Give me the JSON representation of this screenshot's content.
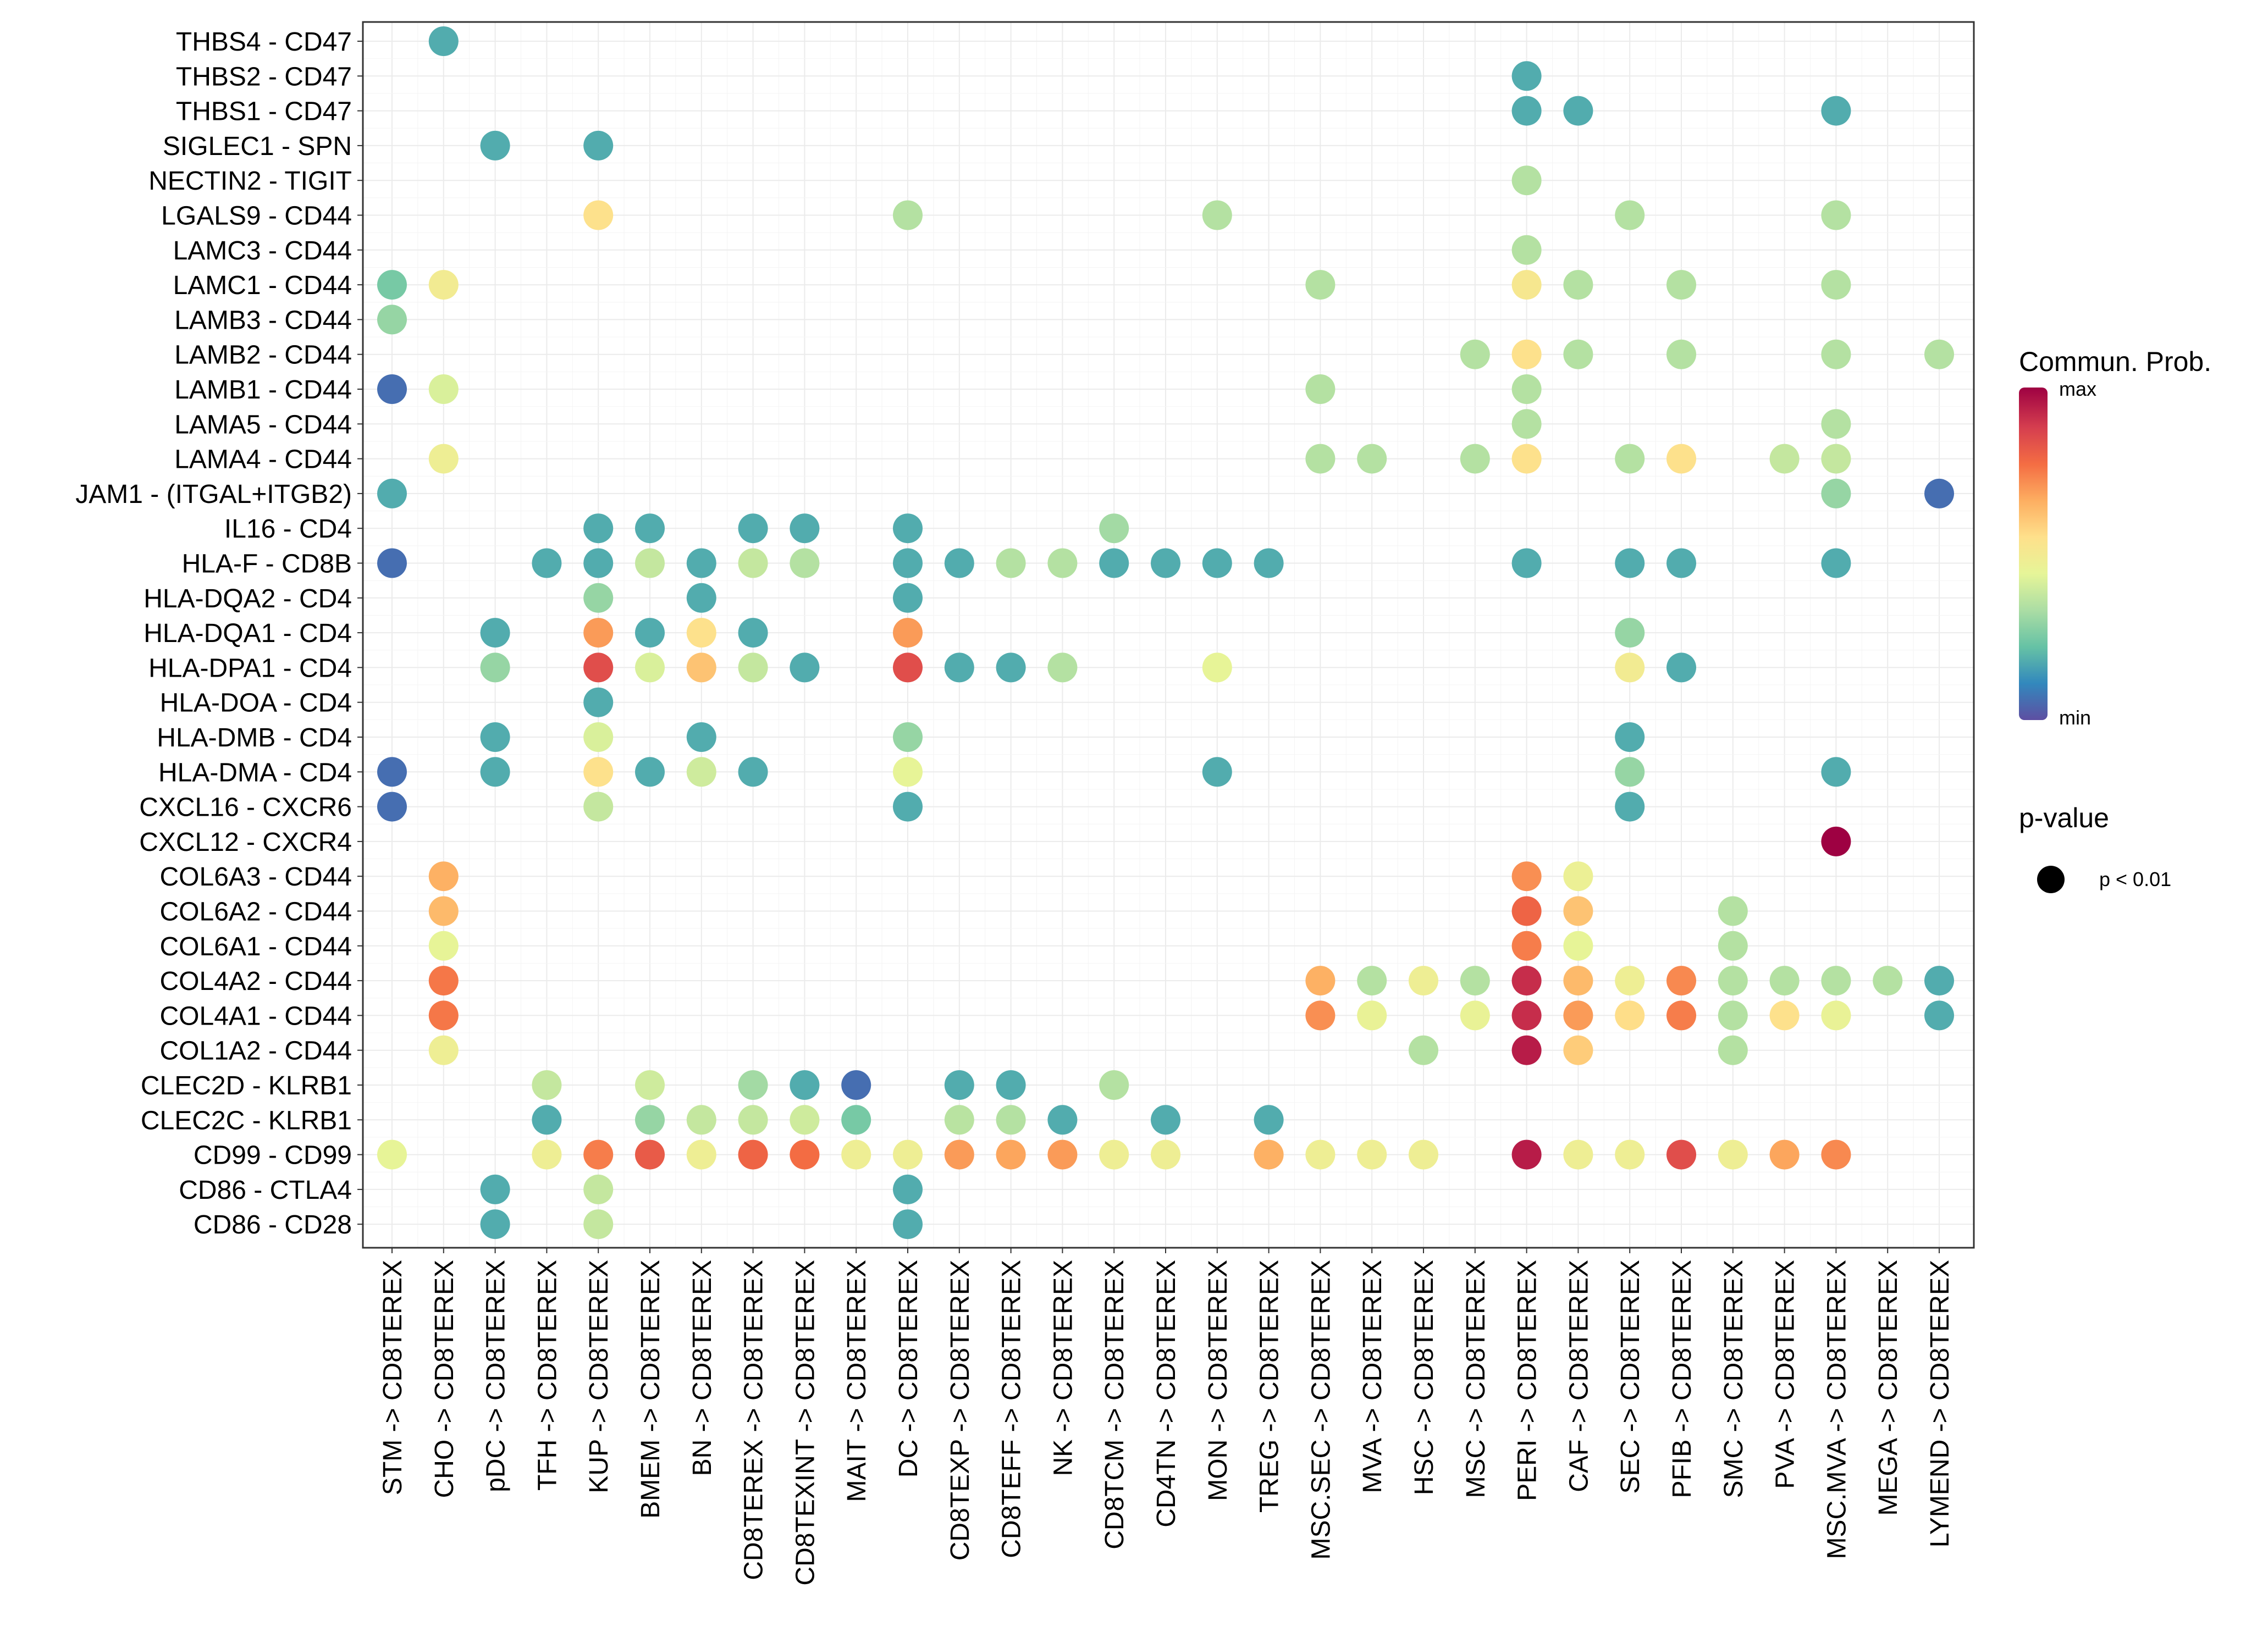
{
  "chart_data": {
    "type": "dot",
    "rows": [
      "THBS4 - CD47",
      "THBS2 - CD47",
      "THBS1 - CD47",
      "SIGLEC1 - SPN",
      "NECTIN2 - TIGIT",
      "LGALS9 - CD44",
      "LAMC3 - CD44",
      "LAMC1 - CD44",
      "LAMB3 - CD44",
      "LAMB2 - CD44",
      "LAMB1 - CD44",
      "LAMA5 - CD44",
      "LAMA4 - CD44",
      "JAM1 - (ITGAL+ITGB2)",
      "IL16 - CD4",
      "HLA-F - CD8B",
      "HLA-DQA2 - CD4",
      "HLA-DQA1 - CD4",
      "HLA-DPA1 - CD4",
      "HLA-DOA - CD4",
      "HLA-DMB - CD4",
      "HLA-DMA - CD4",
      "CXCL16 - CXCR6",
      "CXCL12 - CXCR4",
      "COL6A3 - CD44",
      "COL6A2 - CD44",
      "COL6A1 - CD44",
      "COL4A2 - CD44",
      "COL4A1 - CD44",
      "COL1A2 - CD44",
      "CLEC2D - KLRB1",
      "CLEC2C - KLRB1",
      "CD99 - CD99",
      "CD86 - CTLA4",
      "CD86 - CD28"
    ],
    "columns": [
      "STM -> CD8TEREX",
      "CHO -> CD8TEREX",
      "pDC -> CD8TEREX",
      "TFH -> CD8TEREX",
      "KUP -> CD8TEREX",
      "BMEM -> CD8TEREX",
      "BN -> CD8TEREX",
      "CD8TEREX -> CD8TEREX",
      "CD8TEXINT -> CD8TEREX",
      "MAIT -> CD8TEREX",
      "DC -> CD8TEREX",
      "CD8TEXP -> CD8TEREX",
      "CD8TEFF -> CD8TEREX",
      "NK -> CD8TEREX",
      "CD8TCM -> CD8TEREX",
      "CD4TN -> CD8TEREX",
      "MON -> CD8TEREX",
      "TREG -> CD8TEREX",
      "MSC.SEC -> CD8TEREX",
      "MVA -> CD8TEREX",
      "HSC -> CD8TEREX",
      "MSC -> CD8TEREX",
      "PERI -> CD8TEREX",
      "CAF -> CD8TEREX",
      "SEC -> CD8TEREX",
      "PFIB -> CD8TEREX",
      "SMC -> CD8TEREX",
      "PVA -> CD8TEREX",
      "MSC.MVA -> CD8TEREX",
      "MEGA -> CD8TEREX",
      "LYMEND -> CD8TEREX"
    ],
    "value_scale": "relative communication probability, 0 = min, 1 = max",
    "points": [
      [
        0,
        1,
        0.18
      ],
      [
        1,
        22,
        0.18
      ],
      [
        2,
        22,
        0.18
      ],
      [
        2,
        23,
        0.18
      ],
      [
        2,
        28,
        0.18
      ],
      [
        3,
        2,
        0.18
      ],
      [
        3,
        4,
        0.18
      ],
      [
        4,
        22,
        0.35
      ],
      [
        5,
        4,
        0.55
      ],
      [
        5,
        10,
        0.35
      ],
      [
        5,
        16,
        0.35
      ],
      [
        5,
        24,
        0.35
      ],
      [
        5,
        28,
        0.35
      ],
      [
        6,
        22,
        0.35
      ],
      [
        7,
        0,
        0.25
      ],
      [
        7,
        1,
        0.5
      ],
      [
        7,
        18,
        0.35
      ],
      [
        7,
        22,
        0.52
      ],
      [
        7,
        23,
        0.35
      ],
      [
        7,
        25,
        0.35
      ],
      [
        7,
        28,
        0.35
      ],
      [
        8,
        0,
        0.3
      ],
      [
        9,
        21,
        0.35
      ],
      [
        9,
        22,
        0.55
      ],
      [
        9,
        23,
        0.35
      ],
      [
        9,
        25,
        0.35
      ],
      [
        9,
        28,
        0.35
      ],
      [
        9,
        30,
        0.35
      ],
      [
        10,
        0,
        0.06
      ],
      [
        10,
        1,
        0.42
      ],
      [
        10,
        18,
        0.35
      ],
      [
        10,
        22,
        0.35
      ],
      [
        11,
        22,
        0.35
      ],
      [
        11,
        28,
        0.35
      ],
      [
        12,
        1,
        0.48
      ],
      [
        12,
        18,
        0.35
      ],
      [
        12,
        19,
        0.35
      ],
      [
        12,
        21,
        0.35
      ],
      [
        12,
        22,
        0.55
      ],
      [
        12,
        24,
        0.35
      ],
      [
        12,
        25,
        0.55
      ],
      [
        12,
        27,
        0.38
      ],
      [
        12,
        28,
        0.38
      ],
      [
        13,
        0,
        0.18
      ],
      [
        13,
        28,
        0.3
      ],
      [
        13,
        30,
        0.06
      ],
      [
        14,
        4,
        0.18
      ],
      [
        14,
        5,
        0.18
      ],
      [
        14,
        7,
        0.18
      ],
      [
        14,
        8,
        0.18
      ],
      [
        14,
        10,
        0.18
      ],
      [
        14,
        14,
        0.32
      ],
      [
        15,
        0,
        0.06
      ],
      [
        15,
        3,
        0.18
      ],
      [
        15,
        4,
        0.18
      ],
      [
        15,
        5,
        0.38
      ],
      [
        15,
        6,
        0.18
      ],
      [
        15,
        7,
        0.38
      ],
      [
        15,
        8,
        0.35
      ],
      [
        15,
        10,
        0.18
      ],
      [
        15,
        11,
        0.18
      ],
      [
        15,
        12,
        0.35
      ],
      [
        15,
        13,
        0.35
      ],
      [
        15,
        14,
        0.18
      ],
      [
        15,
        15,
        0.18
      ],
      [
        15,
        16,
        0.18
      ],
      [
        15,
        17,
        0.18
      ],
      [
        15,
        22,
        0.18
      ],
      [
        15,
        24,
        0.18
      ],
      [
        15,
        25,
        0.18
      ],
      [
        15,
        28,
        0.18
      ],
      [
        16,
        4,
        0.3
      ],
      [
        16,
        6,
        0.18
      ],
      [
        16,
        10,
        0.18
      ],
      [
        17,
        2,
        0.18
      ],
      [
        17,
        4,
        0.7
      ],
      [
        17,
        5,
        0.18
      ],
      [
        17,
        6,
        0.55
      ],
      [
        17,
        7,
        0.18
      ],
      [
        17,
        10,
        0.7
      ],
      [
        17,
        24,
        0.3
      ],
      [
        18,
        2,
        0.3
      ],
      [
        18,
        4,
        0.85
      ],
      [
        18,
        5,
        0.42
      ],
      [
        18,
        6,
        0.62
      ],
      [
        18,
        7,
        0.38
      ],
      [
        18,
        8,
        0.18
      ],
      [
        18,
        10,
        0.85
      ],
      [
        18,
        11,
        0.18
      ],
      [
        18,
        12,
        0.18
      ],
      [
        18,
        13,
        0.35
      ],
      [
        18,
        16,
        0.45
      ],
      [
        18,
        24,
        0.5
      ],
      [
        18,
        25,
        0.18
      ],
      [
        19,
        4,
        0.18
      ],
      [
        20,
        2,
        0.18
      ],
      [
        20,
        4,
        0.42
      ],
      [
        20,
        6,
        0.18
      ],
      [
        20,
        10,
        0.3
      ],
      [
        20,
        24,
        0.18
      ],
      [
        21,
        0,
        0.06
      ],
      [
        21,
        2,
        0.18
      ],
      [
        21,
        4,
        0.55
      ],
      [
        21,
        5,
        0.18
      ],
      [
        21,
        6,
        0.4
      ],
      [
        21,
        7,
        0.18
      ],
      [
        21,
        10,
        0.45
      ],
      [
        21,
        16,
        0.18
      ],
      [
        21,
        24,
        0.3
      ],
      [
        21,
        28,
        0.18
      ],
      [
        22,
        0,
        0.06
      ],
      [
        22,
        4,
        0.38
      ],
      [
        22,
        10,
        0.18
      ],
      [
        22,
        24,
        0.18
      ],
      [
        23,
        28,
        1.0
      ],
      [
        24,
        1,
        0.66
      ],
      [
        24,
        22,
        0.72
      ],
      [
        24,
        23,
        0.47
      ],
      [
        25,
        1,
        0.64
      ],
      [
        25,
        22,
        0.8
      ],
      [
        25,
        23,
        0.62
      ],
      [
        25,
        26,
        0.35
      ],
      [
        26,
        1,
        0.45
      ],
      [
        26,
        22,
        0.75
      ],
      [
        26,
        23,
        0.45
      ],
      [
        26,
        26,
        0.35
      ],
      [
        27,
        1,
        0.76
      ],
      [
        27,
        18,
        0.66
      ],
      [
        27,
        19,
        0.35
      ],
      [
        27,
        20,
        0.48
      ],
      [
        27,
        21,
        0.35
      ],
      [
        27,
        22,
        0.92
      ],
      [
        27,
        23,
        0.64
      ],
      [
        27,
        24,
        0.48
      ],
      [
        27,
        25,
        0.73
      ],
      [
        27,
        26,
        0.35
      ],
      [
        27,
        27,
        0.35
      ],
      [
        27,
        28,
        0.35
      ],
      [
        27,
        29,
        0.35
      ],
      [
        27,
        30,
        0.18
      ],
      [
        28,
        1,
        0.76
      ],
      [
        28,
        18,
        0.72
      ],
      [
        28,
        19,
        0.46
      ],
      [
        28,
        21,
        0.46
      ],
      [
        28,
        22,
        0.92
      ],
      [
        28,
        23,
        0.7
      ],
      [
        28,
        24,
        0.56
      ],
      [
        28,
        25,
        0.75
      ],
      [
        28,
        26,
        0.35
      ],
      [
        28,
        27,
        0.55
      ],
      [
        28,
        28,
        0.46
      ],
      [
        28,
        30,
        0.18
      ],
      [
        29,
        1,
        0.48
      ],
      [
        29,
        20,
        0.35
      ],
      [
        29,
        22,
        0.95
      ],
      [
        29,
        23,
        0.6
      ],
      [
        29,
        26,
        0.35
      ],
      [
        30,
        3,
        0.38
      ],
      [
        30,
        5,
        0.4
      ],
      [
        30,
        7,
        0.32
      ],
      [
        30,
        8,
        0.18
      ],
      [
        30,
        9,
        0.06
      ],
      [
        30,
        11,
        0.18
      ],
      [
        30,
        12,
        0.18
      ],
      [
        30,
        14,
        0.35
      ],
      [
        31,
        3,
        0.18
      ],
      [
        31,
        5,
        0.3
      ],
      [
        31,
        6,
        0.38
      ],
      [
        31,
        7,
        0.38
      ],
      [
        31,
        8,
        0.4
      ],
      [
        31,
        9,
        0.25
      ],
      [
        31,
        11,
        0.36
      ],
      [
        31,
        12,
        0.35
      ],
      [
        31,
        13,
        0.18
      ],
      [
        31,
        15,
        0.18
      ],
      [
        31,
        17,
        0.18
      ],
      [
        32,
        0,
        0.45
      ],
      [
        32,
        3,
        0.48
      ],
      [
        32,
        4,
        0.75
      ],
      [
        32,
        5,
        0.82
      ],
      [
        32,
        6,
        0.48
      ],
      [
        32,
        7,
        0.8
      ],
      [
        32,
        8,
        0.78
      ],
      [
        32,
        9,
        0.48
      ],
      [
        32,
        10,
        0.48
      ],
      [
        32,
        11,
        0.7
      ],
      [
        32,
        12,
        0.68
      ],
      [
        32,
        13,
        0.7
      ],
      [
        32,
        14,
        0.48
      ],
      [
        32,
        15,
        0.48
      ],
      [
        32,
        17,
        0.66
      ],
      [
        32,
        18,
        0.48
      ],
      [
        32,
        19,
        0.48
      ],
      [
        32,
        20,
        0.48
      ],
      [
        32,
        22,
        0.95
      ],
      [
        32,
        23,
        0.48
      ],
      [
        32,
        24,
        0.48
      ],
      [
        32,
        25,
        0.85
      ],
      [
        32,
        26,
        0.48
      ],
      [
        32,
        27,
        0.68
      ],
      [
        32,
        28,
        0.73
      ],
      [
        33,
        2,
        0.18
      ],
      [
        33,
        4,
        0.38
      ],
      [
        33,
        10,
        0.18
      ],
      [
        34,
        2,
        0.18
      ],
      [
        34,
        4,
        0.38
      ],
      [
        34,
        10,
        0.18
      ]
    ],
    "legend": {
      "color_title": "Commun. Prob.",
      "color_max_label": "max",
      "color_min_label": "min",
      "size_title": "p-value",
      "size_label": "p < 0.01"
    }
  },
  "colors": {
    "scale": [
      "#5E4FA2",
      "#3288BD",
      "#66C2A5",
      "#ABDDA4",
      "#E6F598",
      "#FEE08B",
      "#FDAE61",
      "#F46D43",
      "#D53E4F",
      "#9E0142"
    ],
    "grid": "#EBEBEB",
    "panel_border": "#333333"
  }
}
